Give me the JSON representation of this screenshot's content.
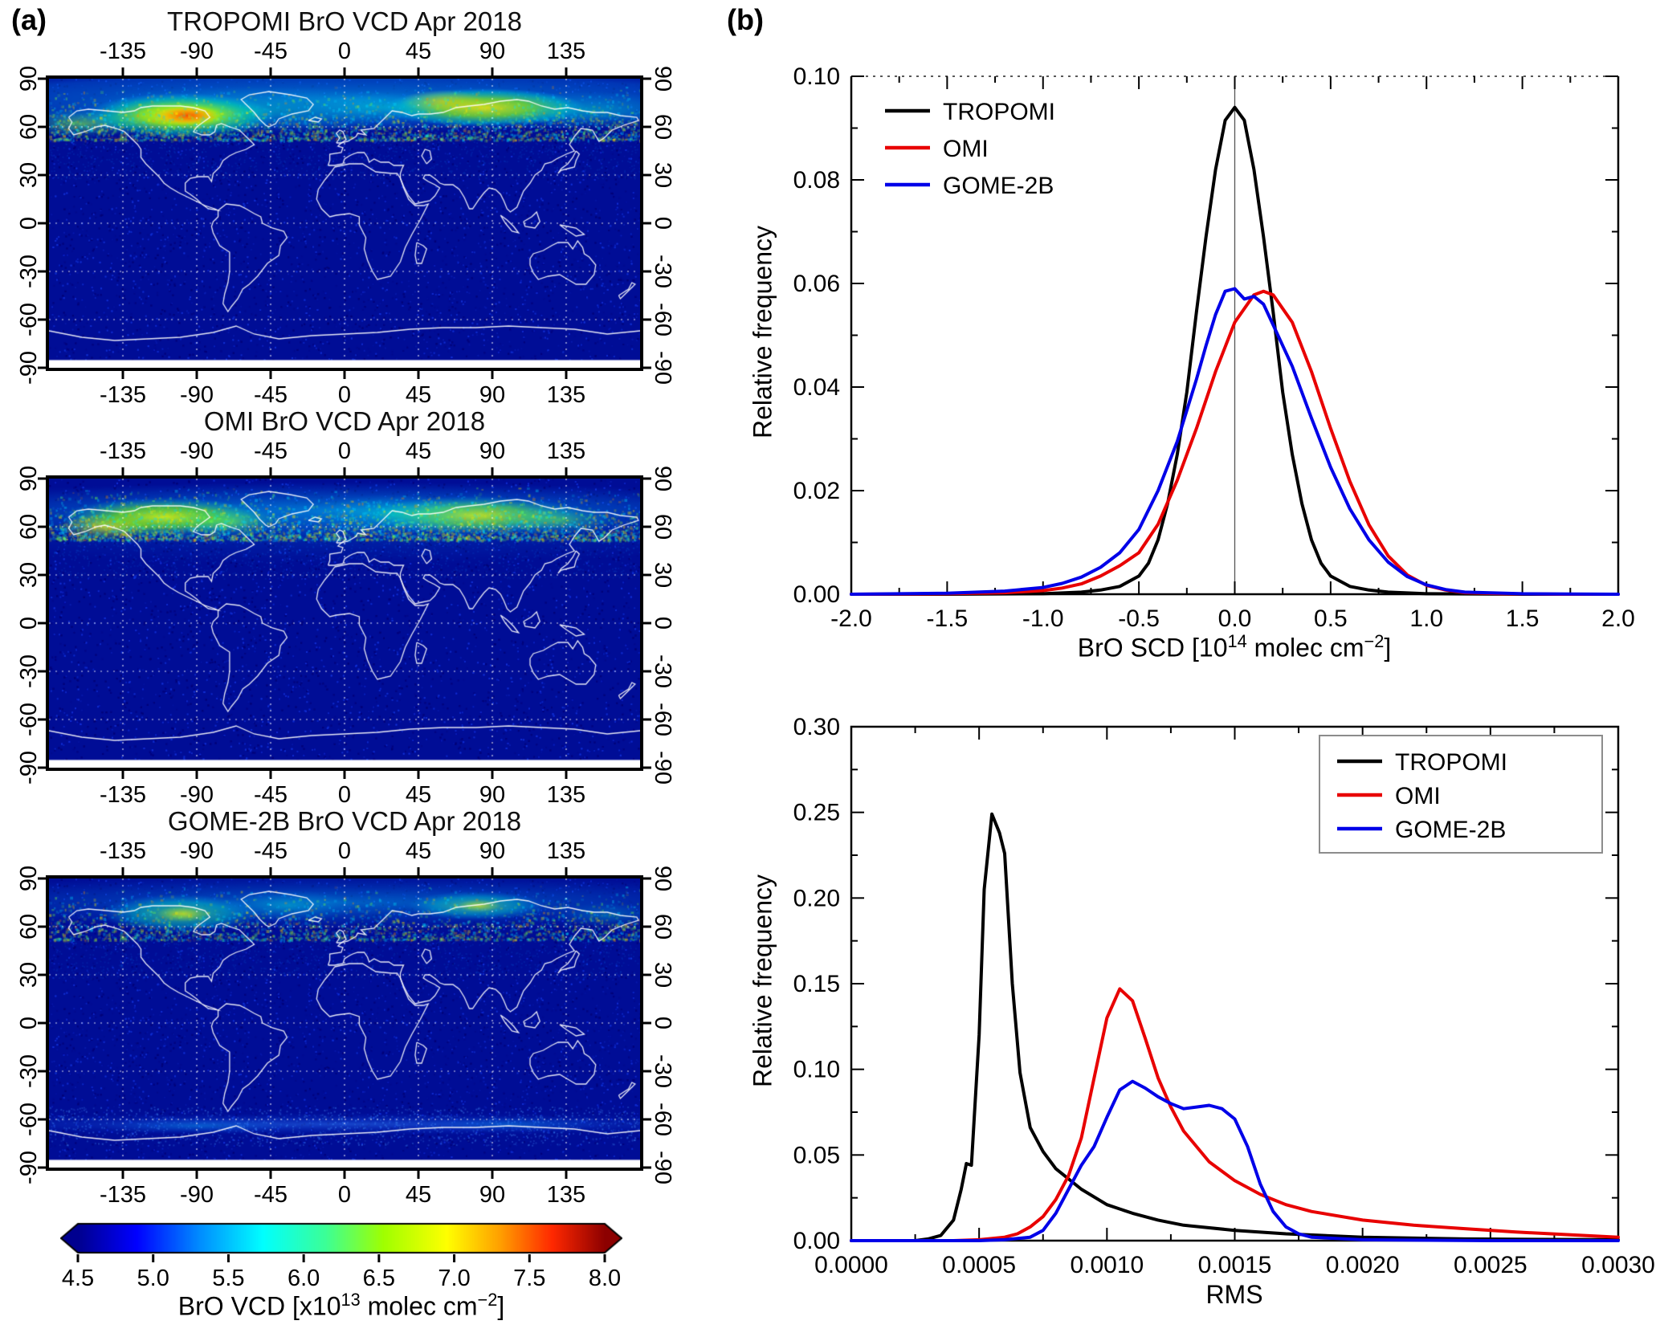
{
  "figure": {
    "panel_a_label": "(a)",
    "panel_b_label": "(b)"
  },
  "maps": {
    "titles": [
      "TROPOMI BrO VCD Apr 2018",
      "OMI BrO VCD Apr 2018",
      "GOME-2B BrO VCD Apr 2018"
    ],
    "lon_ticks": [
      -135,
      -90,
      -45,
      0,
      45,
      90,
      135
    ],
    "lon_tick_labels": [
      "-135",
      "-90",
      "-45",
      "0",
      "45",
      "90",
      "135"
    ],
    "lat_ticks": [
      90,
      60,
      30,
      0,
      -30,
      -60,
      -90
    ],
    "lat_tick_labels": [
      "90",
      "60",
      "30",
      "0",
      "-30",
      "-60",
      "-90"
    ],
    "ocean_color": "#000d96",
    "colorbar": {
      "tick_labels": [
        "4.5",
        "5.0",
        "5.5",
        "6.0",
        "6.5",
        "7.0",
        "7.5",
        "8.0"
      ],
      "label": "BrO VCD [x10^13 molec cm^-2]",
      "label_segments": [
        {
          "type": "text",
          "v": "BrO VCD [x10"
        },
        {
          "type": "sup",
          "v": "13"
        },
        {
          "type": "text",
          "v": " molec cm"
        },
        {
          "type": "sup",
          "v": "−2"
        },
        {
          "type": "text",
          "v": "]"
        }
      ],
      "stops": [
        {
          "t": 0,
          "c": "#00008f"
        },
        {
          "t": 0.11,
          "c": "#0000ff"
        },
        {
          "t": 0.23,
          "c": "#008cff"
        },
        {
          "t": 0.35,
          "c": "#00ffff"
        },
        {
          "t": 0.47,
          "c": "#3cff96"
        },
        {
          "t": 0.58,
          "c": "#a0ff00"
        },
        {
          "t": 0.7,
          "c": "#ffff00"
        },
        {
          "t": 0.8,
          "c": "#ffa000"
        },
        {
          "t": 0.9,
          "c": "#ff2800"
        },
        {
          "t": 1,
          "c": "#8c0000"
        }
      ]
    }
  },
  "chart_data": [
    {
      "type": "line",
      "title": "",
      "xlabel": "BrO SCD [10^14 molec cm^-2]",
      "xlabel_segments": [
        {
          "type": "text",
          "v": "BrO SCD [10"
        },
        {
          "type": "sup",
          "v": "14"
        },
        {
          "type": "text",
          "v": " molec cm"
        },
        {
          "type": "sup",
          "v": "−2"
        },
        {
          "type": "text",
          "v": "]"
        }
      ],
      "ylabel": "Relative frequency",
      "xlim": [
        -2,
        2
      ],
      "ylim": [
        0,
        0.1
      ],
      "xticks": [
        -2,
        -1.5,
        -1,
        -0.5,
        0,
        0.5,
        1,
        1.5,
        2
      ],
      "xtick_labels": [
        "-2.0",
        "-1.5",
        "-1.0",
        "-0.5",
        "0.0",
        "0.5",
        "1.0",
        "1.5",
        "2.0"
      ],
      "yticks": [
        0,
        0.02,
        0.04,
        0.06,
        0.08,
        0.1
      ],
      "ytick_labels": [
        "0.00",
        "0.02",
        "0.04",
        "0.06",
        "0.08",
        "0.10"
      ],
      "grid": false,
      "legend_position": "top-left",
      "vline_x": 0,
      "series": [
        {
          "name": "TROPOMI",
          "color": "#000000",
          "x": [
            -2,
            -1.5,
            -1,
            -0.8,
            -0.7,
            -0.6,
            -0.5,
            -0.45,
            -0.4,
            -0.35,
            -0.3,
            -0.25,
            -0.2,
            -0.15,
            -0.1,
            -0.05,
            0,
            0.05,
            0.1,
            0.15,
            0.2,
            0.25,
            0.3,
            0.35,
            0.4,
            0.45,
            0.5,
            0.6,
            0.7,
            0.8,
            1,
            1.5,
            2
          ],
          "y": [
            0,
            0,
            0.0001,
            0.0004,
            0.0008,
            0.0015,
            0.0035,
            0.006,
            0.0105,
            0.0175,
            0.027,
            0.039,
            0.0545,
            0.069,
            0.082,
            0.0915,
            0.094,
            0.0915,
            0.082,
            0.069,
            0.0545,
            0.039,
            0.027,
            0.0175,
            0.0105,
            0.006,
            0.0035,
            0.0015,
            0.0008,
            0.0004,
            0.0001,
            0,
            0
          ]
        },
        {
          "name": "OMI",
          "color": "#e80000",
          "x": [
            -2,
            -1.5,
            -1.2,
            -1,
            -0.9,
            -0.8,
            -0.7,
            -0.6,
            -0.5,
            -0.4,
            -0.3,
            -0.2,
            -0.1,
            0,
            0.1,
            0.15,
            0.2,
            0.3,
            0.4,
            0.5,
            0.6,
            0.7,
            0.8,
            0.9,
            1,
            1.1,
            1.2,
            1.4,
            1.7,
            2
          ],
          "y": [
            0,
            0.0001,
            0.0003,
            0.0007,
            0.0012,
            0.002,
            0.0035,
            0.0055,
            0.008,
            0.0135,
            0.022,
            0.032,
            0.043,
            0.0525,
            0.0578,
            0.0585,
            0.0578,
            0.0525,
            0.043,
            0.032,
            0.0218,
            0.0134,
            0.0074,
            0.0037,
            0.0017,
            0.0008,
            0.0003,
            0.0001,
            0,
            0
          ]
        },
        {
          "name": "GOME-2B",
          "color": "#0000e8",
          "x": [
            -2,
            -1.5,
            -1.2,
            -1,
            -0.9,
            -0.8,
            -0.7,
            -0.6,
            -0.5,
            -0.4,
            -0.3,
            -0.2,
            -0.15,
            -0.1,
            -0.05,
            0,
            0.05,
            0.1,
            0.15,
            0.2,
            0.3,
            0.4,
            0.5,
            0.6,
            0.7,
            0.8,
            0.9,
            1,
            1.1,
            1.2,
            1.5,
            2
          ],
          "y": [
            0,
            0.0002,
            0.0006,
            0.0013,
            0.0021,
            0.0033,
            0.0052,
            0.008,
            0.0125,
            0.02,
            0.0295,
            0.0415,
            0.048,
            0.054,
            0.0585,
            0.059,
            0.057,
            0.0575,
            0.056,
            0.052,
            0.044,
            0.034,
            0.0245,
            0.0165,
            0.0105,
            0.0062,
            0.0034,
            0.0018,
            0.0009,
            0.0004,
            0.0001,
            0
          ]
        }
      ]
    },
    {
      "type": "line",
      "title": "",
      "xlabel": "RMS",
      "ylabel": "Relative frequency",
      "xlim": [
        0,
        0.003
      ],
      "ylim": [
        0,
        0.3
      ],
      "xticks": [
        0,
        0.0005,
        0.001,
        0.0015,
        0.002,
        0.0025,
        0.003
      ],
      "xtick_labels": [
        "0.0000",
        "0.0005",
        "0.0010",
        "0.0015",
        "0.0020",
        "0.0025",
        "0.0030"
      ],
      "yticks": [
        0,
        0.05,
        0.1,
        0.15,
        0.2,
        0.25,
        0.3
      ],
      "ytick_labels": [
        "0.00",
        "0.05",
        "0.10",
        "0.15",
        "0.20",
        "0.25",
        "0.30"
      ],
      "grid": false,
      "legend_position": "top-right-boxed",
      "vline_x": null,
      "series": [
        {
          "name": "TROPOMI",
          "color": "#000000",
          "x": [
            0,
            0.00025,
            0.0003,
            0.00035,
            0.0004,
            0.00043,
            0.00045,
            0.00047,
            0.0005,
            0.00052,
            0.00055,
            0.00058,
            0.0006,
            0.00063,
            0.00066,
            0.0007,
            0.00075,
            0.0008,
            0.00085,
            0.0009,
            0.001,
            0.0011,
            0.0012,
            0.0013,
            0.0015,
            0.0017,
            0.002,
            0.0024,
            0.003
          ],
          "y": [
            0,
            0,
            0.001,
            0.003,
            0.012,
            0.03,
            0.045,
            0.044,
            0.12,
            0.205,
            0.249,
            0.238,
            0.226,
            0.15,
            0.098,
            0.066,
            0.052,
            0.042,
            0.036,
            0.03,
            0.021,
            0.016,
            0.012,
            0.009,
            0.006,
            0.004,
            0.002,
            0.001,
            0.0005
          ]
        },
        {
          "name": "OMI",
          "color": "#e80000",
          "x": [
            0,
            0.0004,
            0.0005,
            0.0006,
            0.00065,
            0.0007,
            0.00075,
            0.0008,
            0.00085,
            0.0009,
            0.00095,
            0.001,
            0.00105,
            0.0011,
            0.00115,
            0.0012,
            0.00125,
            0.0013,
            0.0014,
            0.0015,
            0.0016,
            0.0017,
            0.0018,
            0.002,
            0.0022,
            0.0024,
            0.0026,
            0.0028,
            0.003
          ],
          "y": [
            0,
            0,
            0.0005,
            0.002,
            0.004,
            0.008,
            0.014,
            0.024,
            0.038,
            0.06,
            0.095,
            0.13,
            0.147,
            0.14,
            0.118,
            0.095,
            0.078,
            0.064,
            0.046,
            0.035,
            0.027,
            0.021,
            0.017,
            0.012,
            0.009,
            0.007,
            0.005,
            0.0035,
            0.002
          ]
        },
        {
          "name": "GOME-2B",
          "color": "#0000e8",
          "x": [
            0,
            0.0005,
            0.0006,
            0.0007,
            0.00075,
            0.0008,
            0.00085,
            0.0009,
            0.00095,
            0.001,
            0.00105,
            0.0011,
            0.00115,
            0.0012,
            0.00125,
            0.0013,
            0.00135,
            0.0014,
            0.00145,
            0.0015,
            0.00155,
            0.0016,
            0.00165,
            0.0017,
            0.00175,
            0.0018,
            0.002,
            0.0025,
            0.003
          ],
          "y": [
            0,
            0,
            0.0005,
            0.002,
            0.006,
            0.016,
            0.03,
            0.044,
            0.055,
            0.072,
            0.088,
            0.093,
            0.089,
            0.084,
            0.08,
            0.077,
            0.078,
            0.079,
            0.077,
            0.071,
            0.055,
            0.033,
            0.017,
            0.008,
            0.004,
            0.002,
            0.0005,
            0,
            0
          ]
        }
      ]
    }
  ]
}
